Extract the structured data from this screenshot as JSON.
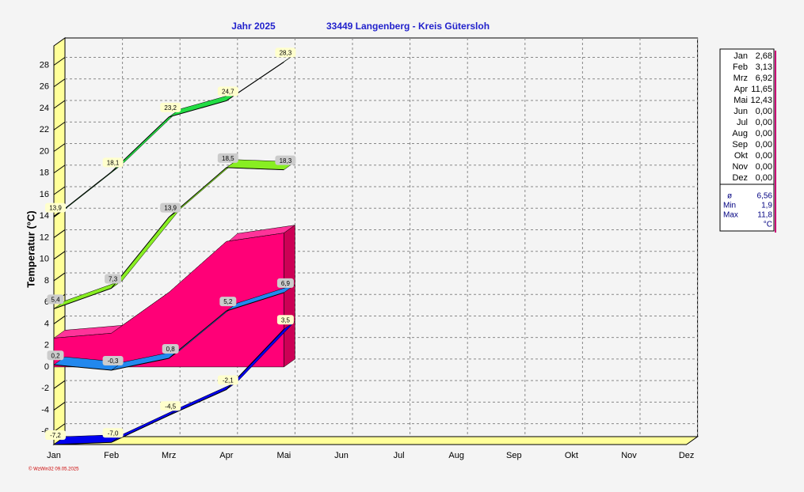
{
  "chart_data": {
    "type": "line3d",
    "title": "Jahr  2025",
    "subtitle": "33449 Langenberg - Kreis Gütersloh",
    "y_label": "Temperatur  (°C)",
    "footer": "© WzWin32  09.05.2025",
    "categories": [
      "Jan",
      "Feb",
      "Mrz",
      "Apr",
      "Mai",
      "Jun",
      "Jul",
      "Aug",
      "Sep",
      "Okt",
      "Nov",
      "Dez"
    ],
    "ylim": [
      -7.2,
      29.8
    ],
    "yticks": [
      -6,
      -4,
      -2,
      0,
      2,
      4,
      6,
      8,
      10,
      12,
      14,
      16,
      18,
      20,
      22,
      24,
      26,
      28
    ],
    "grid": true,
    "area": {
      "color": "#ff0077",
      "values": [
        2.68,
        3.13,
        6.92,
        11.65,
        12.43,
        null,
        null,
        null,
        null,
        null,
        null,
        null
      ]
    },
    "series": [
      {
        "color": "#22dd44",
        "label_bg": "#ffffcc",
        "values": [
          13.9,
          18.1,
          23.2,
          24.7,
          28.3,
          null,
          null,
          null,
          null,
          null,
          null,
          null
        ],
        "value_labels": [
          "13,9",
          "18,1",
          "23,2",
          "24,7",
          "28,3",
          null,
          null,
          null,
          null,
          null,
          null,
          null
        ]
      },
      {
        "color": "#88ee22",
        "label_bg": "#cccccc",
        "values": [
          5.4,
          7.3,
          13.9,
          18.5,
          18.3,
          null,
          null,
          null,
          null,
          null,
          null,
          null
        ],
        "value_labels": [
          "5,4",
          "7,3",
          "13,9",
          "18,5",
          "18,3",
          null,
          null,
          null,
          null,
          null,
          null,
          null
        ]
      },
      {
        "color": "#2288ee",
        "label_bg": "#cccccc",
        "values": [
          0.2,
          -0.3,
          0.8,
          5.2,
          6.9,
          null,
          null,
          null,
          null,
          null,
          null,
          null
        ],
        "value_labels": [
          "0,2",
          "-0,3",
          "0,8",
          "5,2",
          "6,9",
          null,
          null,
          null,
          null,
          null,
          null,
          null
        ]
      },
      {
        "color": "#0000ee",
        "label_bg": "#ffffcc",
        "values": [
          -7.2,
          -7.0,
          -4.5,
          -2.1,
          3.5,
          null,
          null,
          null,
          null,
          null,
          null,
          null
        ],
        "value_labels": [
          "-7,2",
          "-7,0",
          "-4,5",
          "-2,1",
          "3,5",
          null,
          null,
          null,
          null,
          null,
          null,
          null
        ]
      }
    ],
    "side_table": {
      "months": [
        "Jan",
        "Feb",
        "Mrz",
        "Apr",
        "Mai",
        "Jun",
        "Jul",
        "Aug",
        "Sep",
        "Okt",
        "Nov",
        "Dez"
      ],
      "values": [
        "2,68",
        "3,13",
        "6,92",
        "11,65",
        "12,43",
        "0,00",
        "0,00",
        "0,00",
        "0,00",
        "0,00",
        "0,00",
        "0,00"
      ],
      "stats": [
        {
          "label": "ø",
          "value": "6,56"
        },
        {
          "label": "Min",
          "value": "1,9"
        },
        {
          "label": "Max",
          "value": "11,8"
        }
      ],
      "unit": "°C"
    }
  }
}
